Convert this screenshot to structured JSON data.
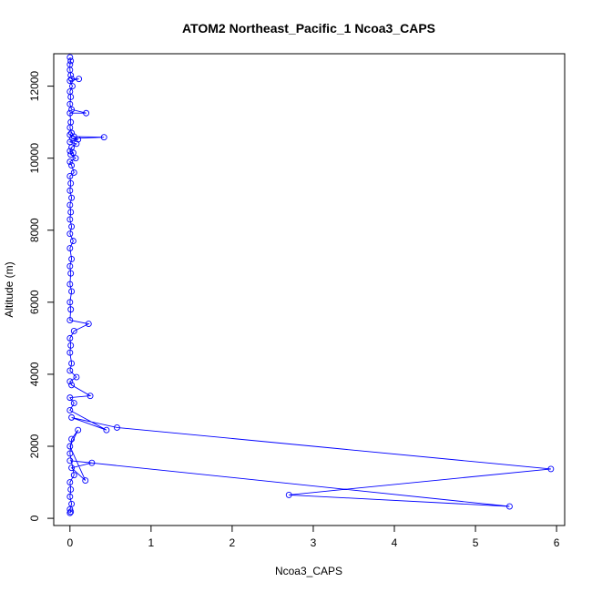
{
  "chart_data": {
    "type": "line",
    "title": "ATOM2 Northeast_Pacific_1 Ncoa3_CAPS",
    "xlabel": "Ncoa3_CAPS",
    "ylabel": "Altitude (m)",
    "xlim": [
      -0.2,
      6.1
    ],
    "ylim": [
      -200,
      12900
    ],
    "xticks": [
      0,
      1,
      2,
      3,
      4,
      5,
      6
    ],
    "yticks": [
      0,
      2000,
      4000,
      6000,
      8000,
      10000,
      12000
    ],
    "grid": false,
    "series": [
      {
        "color": "#0000ff",
        "marker": "open-circle",
        "points": [
          [
            0.0,
            12800
          ],
          [
            0.01,
            12700
          ],
          [
            0.0,
            12600
          ],
          [
            0.0,
            12450
          ],
          [
            0.01,
            12300
          ],
          [
            0.02,
            12200
          ],
          [
            0.11,
            12200
          ],
          [
            0.0,
            12150
          ],
          [
            0.03,
            12000
          ],
          [
            0.0,
            11850
          ],
          [
            0.01,
            11700
          ],
          [
            0.0,
            11500
          ],
          [
            0.02,
            11350
          ],
          [
            0.2,
            11250
          ],
          [
            0.0,
            11250
          ],
          [
            0.01,
            11000
          ],
          [
            0.0,
            10850
          ],
          [
            0.02,
            10700
          ],
          [
            0.0,
            10650
          ],
          [
            0.05,
            10600
          ],
          [
            0.42,
            10580
          ],
          [
            0.03,
            10550
          ],
          [
            0.1,
            10520
          ],
          [
            0.0,
            10450
          ],
          [
            0.08,
            10400
          ],
          [
            0.02,
            10300
          ],
          [
            0.0,
            10200
          ],
          [
            0.04,
            10150
          ],
          [
            0.01,
            10100
          ],
          [
            0.07,
            10000
          ],
          [
            0.0,
            9900
          ],
          [
            0.02,
            9800
          ],
          [
            0.05,
            9600
          ],
          [
            0.0,
            9500
          ],
          [
            0.01,
            9300
          ],
          [
            0.0,
            9100
          ],
          [
            0.02,
            8900
          ],
          [
            0.0,
            8700
          ],
          [
            0.01,
            8500
          ],
          [
            0.0,
            8300
          ],
          [
            0.02,
            8100
          ],
          [
            0.0,
            7900
          ],
          [
            0.04,
            7700
          ],
          [
            0.0,
            7500
          ],
          [
            0.02,
            7200
          ],
          [
            0.0,
            7000
          ],
          [
            0.01,
            6800
          ],
          [
            0.0,
            6500
          ],
          [
            0.02,
            6300
          ],
          [
            0.0,
            6000
          ],
          [
            0.01,
            5800
          ],
          [
            0.0,
            5500
          ],
          [
            0.23,
            5400
          ],
          [
            0.05,
            5200
          ],
          [
            0.0,
            5000
          ],
          [
            0.01,
            4800
          ],
          [
            0.0,
            4600
          ],
          [
            0.02,
            4300
          ],
          [
            0.0,
            4100
          ],
          [
            0.08,
            3920
          ],
          [
            0.0,
            3800
          ],
          [
            0.02,
            3700
          ],
          [
            0.25,
            3400
          ],
          [
            0.0,
            3350
          ],
          [
            0.05,
            3200
          ],
          [
            0.0,
            3000
          ],
          [
            0.45,
            2450
          ],
          [
            0.02,
            2800
          ],
          [
            0.58,
            2520
          ],
          [
            5.93,
            1370
          ],
          [
            2.7,
            650
          ],
          [
            5.42,
            330
          ],
          [
            0.0,
            1600
          ],
          [
            0.27,
            1540
          ],
          [
            0.02,
            1400
          ],
          [
            0.19,
            1050
          ],
          [
            0.0,
            2000
          ],
          [
            0.1,
            2450
          ],
          [
            0.02,
            2200
          ],
          [
            0.0,
            1800
          ],
          [
            0.05,
            1200
          ],
          [
            0.0,
            1000
          ],
          [
            0.01,
            800
          ],
          [
            0.0,
            600
          ],
          [
            0.02,
            400
          ],
          [
            0.0,
            250
          ],
          [
            0.01,
            180
          ],
          [
            0.0,
            150
          ]
        ]
      }
    ]
  }
}
